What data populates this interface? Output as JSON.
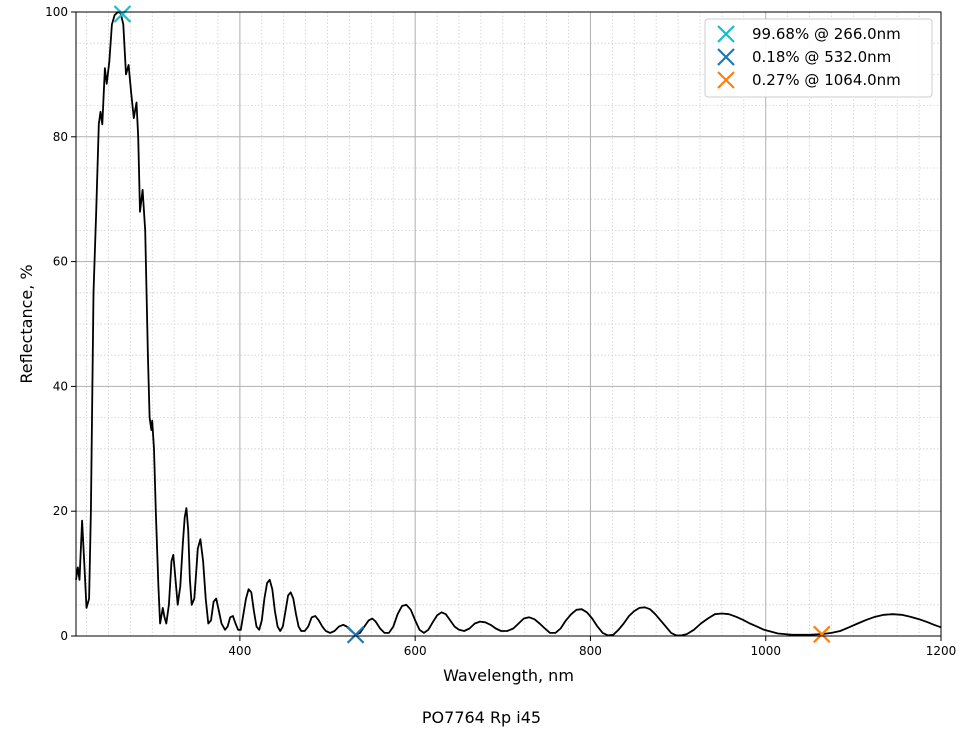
{
  "chart_data": {
    "type": "line",
    "title": "",
    "caption": "PO7764 Rp i45",
    "xlabel": "Wavelength, nm",
    "ylabel": "Reflectance, %",
    "xlim": [
      213,
      1200
    ],
    "ylim": [
      0,
      100
    ],
    "x_ticks": [
      400,
      600,
      800,
      1000,
      1200
    ],
    "y_ticks": [
      0,
      20,
      40,
      60,
      80,
      100
    ],
    "grid": true,
    "minor_grid": true,
    "legend_position": "top-right",
    "line_color": "#000000",
    "series": [
      {
        "points": [
          [
            213,
            9
          ],
          [
            215,
            11
          ],
          [
            217,
            9
          ],
          [
            220,
            18.5
          ],
          [
            223,
            10
          ],
          [
            225,
            4.5
          ],
          [
            228,
            6
          ],
          [
            230,
            20
          ],
          [
            233,
            55
          ],
          [
            236,
            68
          ],
          [
            239,
            82
          ],
          [
            241,
            84
          ],
          [
            243,
            82
          ],
          [
            246,
            91
          ],
          [
            248,
            88.5
          ],
          [
            251,
            92
          ],
          [
            254,
            98
          ],
          [
            257,
            99.5
          ],
          [
            261,
            100
          ],
          [
            264,
            99.8
          ],
          [
            267,
            98
          ],
          [
            270,
            90
          ],
          [
            273,
            91.5
          ],
          [
            276,
            87
          ],
          [
            279,
            83
          ],
          [
            282,
            85.5
          ],
          [
            284,
            80
          ],
          [
            286,
            68
          ],
          [
            289,
            71.5
          ],
          [
            292,
            65
          ],
          [
            295,
            45
          ],
          [
            297,
            35
          ],
          [
            299,
            33
          ],
          [
            300,
            34.5
          ],
          [
            302,
            30
          ],
          [
            304,
            20
          ],
          [
            307,
            8
          ],
          [
            309,
            2
          ],
          [
            312,
            4.5
          ],
          [
            314,
            3
          ],
          [
            316,
            2
          ],
          [
            319,
            5
          ],
          [
            322,
            12
          ],
          [
            324,
            13
          ],
          [
            326,
            10
          ],
          [
            329,
            5
          ],
          [
            332,
            8
          ],
          [
            335,
            15
          ],
          [
            337,
            19
          ],
          [
            339,
            20.5
          ],
          [
            341,
            17
          ],
          [
            343,
            9
          ],
          [
            345,
            5
          ],
          [
            348,
            6
          ],
          [
            350,
            10
          ],
          [
            352,
            14
          ],
          [
            355,
            15.5
          ],
          [
            358,
            12
          ],
          [
            361,
            6
          ],
          [
            364,
            2
          ],
          [
            367,
            2.5
          ],
          [
            370,
            5.5
          ],
          [
            373,
            6
          ],
          [
            376,
            4
          ],
          [
            379,
            2
          ],
          [
            383,
            1
          ],
          [
            386,
            1.5
          ],
          [
            389,
            3
          ],
          [
            392,
            3.2
          ],
          [
            395,
            2
          ],
          [
            398,
            1
          ],
          [
            401,
            1
          ],
          [
            404,
            3.5
          ],
          [
            407,
            6
          ],
          [
            410,
            7.5
          ],
          [
            413,
            7
          ],
          [
            416,
            4
          ],
          [
            419,
            1.5
          ],
          [
            422,
            1
          ],
          [
            425,
            2.5
          ],
          [
            428,
            6
          ],
          [
            431,
            8.5
          ],
          [
            434,
            9
          ],
          [
            437,
            7.5
          ],
          [
            440,
            4
          ],
          [
            443,
            1.5
          ],
          [
            446,
            0.8
          ],
          [
            449,
            1.5
          ],
          [
            452,
            4
          ],
          [
            455,
            6.5
          ],
          [
            458,
            7
          ],
          [
            461,
            6
          ],
          [
            464,
            3.5
          ],
          [
            467,
            1.5
          ],
          [
            470,
            0.8
          ],
          [
            474,
            0.8
          ],
          [
            478,
            1.5
          ],
          [
            482,
            3
          ],
          [
            486,
            3.2
          ],
          [
            490,
            2.5
          ],
          [
            494,
            1.5
          ],
          [
            498,
            0.8
          ],
          [
            503,
            0.5
          ],
          [
            508,
            0.8
          ],
          [
            513,
            1.5
          ],
          [
            518,
            1.8
          ],
          [
            522,
            1.5
          ],
          [
            527,
            0.8
          ],
          [
            532,
            0.2
          ],
          [
            537,
            0.5
          ],
          [
            542,
            1.5
          ],
          [
            547,
            2.5
          ],
          [
            551,
            2.8
          ],
          [
            555,
            2.3
          ],
          [
            560,
            1.2
          ],
          [
            565,
            0.5
          ],
          [
            570,
            0.5
          ],
          [
            575,
            1.5
          ],
          [
            580,
            3.5
          ],
          [
            585,
            4.8
          ],
          [
            590,
            5
          ],
          [
            595,
            4.2
          ],
          [
            600,
            2.5
          ],
          [
            605,
            1
          ],
          [
            610,
            0.5
          ],
          [
            615,
            1
          ],
          [
            620,
            2.2
          ],
          [
            625,
            3.3
          ],
          [
            630,
            3.8
          ],
          [
            635,
            3.5
          ],
          [
            640,
            2.5
          ],
          [
            645,
            1.5
          ],
          [
            650,
            1
          ],
          [
            656,
            0.8
          ],
          [
            662,
            1.2
          ],
          [
            668,
            2
          ],
          [
            674,
            2.3
          ],
          [
            680,
            2.2
          ],
          [
            686,
            1.8
          ],
          [
            692,
            1.2
          ],
          [
            698,
            0.8
          ],
          [
            705,
            0.8
          ],
          [
            712,
            1.2
          ],
          [
            718,
            2
          ],
          [
            724,
            2.8
          ],
          [
            730,
            3
          ],
          [
            736,
            2.7
          ],
          [
            742,
            2
          ],
          [
            748,
            1.2
          ],
          [
            754,
            0.5
          ],
          [
            760,
            0.5
          ],
          [
            766,
            1.2
          ],
          [
            772,
            2.5
          ],
          [
            778,
            3.5
          ],
          [
            784,
            4.2
          ],
          [
            790,
            4.3
          ],
          [
            796,
            3.8
          ],
          [
            802,
            2.8
          ],
          [
            808,
            1.5
          ],
          [
            814,
            0.5
          ],
          [
            820,
            0.1
          ],
          [
            826,
            0.2
          ],
          [
            832,
            1
          ],
          [
            838,
            2
          ],
          [
            844,
            3.2
          ],
          [
            850,
            4
          ],
          [
            856,
            4.5
          ],
          [
            862,
            4.6
          ],
          [
            868,
            4.3
          ],
          [
            874,
            3.5
          ],
          [
            880,
            2.5
          ],
          [
            886,
            1.5
          ],
          [
            892,
            0.5
          ],
          [
            898,
            0.1
          ],
          [
            904,
            0.1
          ],
          [
            910,
            0.3
          ],
          [
            918,
            1
          ],
          [
            926,
            2
          ],
          [
            934,
            2.8
          ],
          [
            942,
            3.5
          ],
          [
            950,
            3.6
          ],
          [
            958,
            3.5
          ],
          [
            966,
            3.1
          ],
          [
            974,
            2.6
          ],
          [
            982,
            2
          ],
          [
            990,
            1.5
          ],
          [
            998,
            1
          ],
          [
            1006,
            0.7
          ],
          [
            1014,
            0.4
          ],
          [
            1022,
            0.3
          ],
          [
            1030,
            0.2
          ],
          [
            1040,
            0.2
          ],
          [
            1050,
            0.2
          ],
          [
            1064,
            0.3
          ],
          [
            1075,
            0.5
          ],
          [
            1085,
            0.8
          ],
          [
            1095,
            1.4
          ],
          [
            1105,
            2
          ],
          [
            1115,
            2.6
          ],
          [
            1125,
            3.1
          ],
          [
            1135,
            3.4
          ],
          [
            1145,
            3.5
          ],
          [
            1155,
            3.4
          ],
          [
            1165,
            3.1
          ],
          [
            1175,
            2.7
          ],
          [
            1185,
            2.2
          ],
          [
            1192,
            1.8
          ],
          [
            1200,
            1.4
          ]
        ]
      }
    ],
    "markers": [
      {
        "label": "99.68% @ 266.0nm",
        "x": 266.0,
        "y": 99.68,
        "color": "#17becf"
      },
      {
        "label": "0.18% @ 532.0nm",
        "x": 532.0,
        "y": 0.18,
        "color": "#1f77b4"
      },
      {
        "label": "0.27% @ 1064.0nm",
        "x": 1064.0,
        "y": 0.27,
        "color": "#ff7f0e"
      }
    ]
  }
}
